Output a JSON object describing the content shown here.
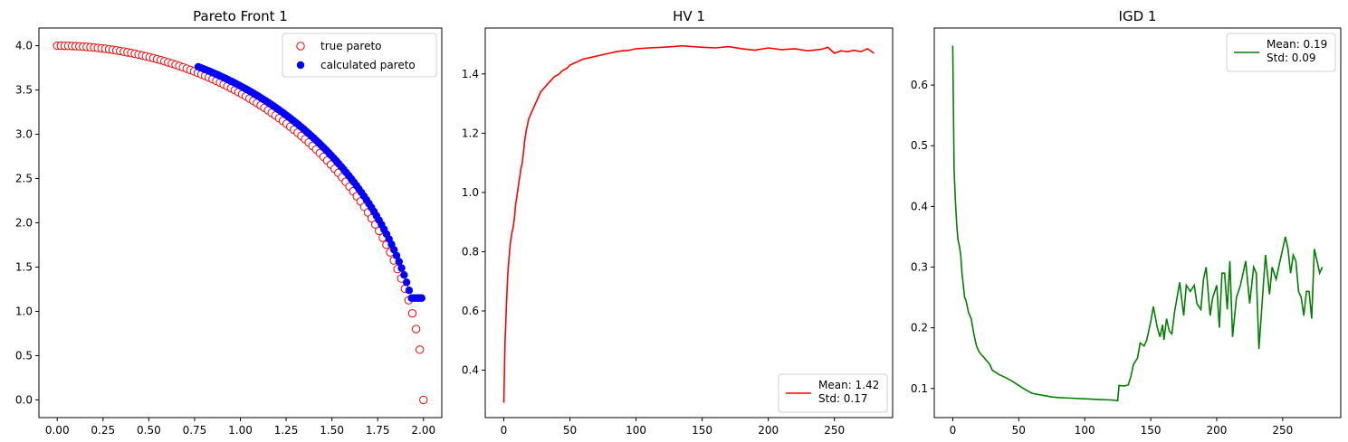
{
  "chart_data": [
    {
      "type": "scatter",
      "title": "Pareto Front 1",
      "xlim": [
        -0.1,
        2.1
      ],
      "ylim": [
        -0.2,
        4.2
      ],
      "xticks": [
        "0.00",
        "0.25",
        "0.50",
        "0.75",
        "1.00",
        "1.25",
        "1.50",
        "1.75",
        "2.00"
      ],
      "yticks": [
        "0.0",
        "0.5",
        "1.0",
        "1.5",
        "2.0",
        "2.5",
        "3.0",
        "3.5",
        "4.0"
      ],
      "legend_position": "upper right",
      "grid": false,
      "series": [
        {
          "name": "true pareto",
          "marker": "open-circle",
          "color": "#ff0000",
          "curve": "quarter-ellipse y = 4*sqrt(1-(x/2)^2)",
          "x_range": [
            0,
            2
          ],
          "points": 100
        },
        {
          "name": "calculated pareto",
          "marker": "filled-circle",
          "color": "#0000ff",
          "curve": "offset above true front",
          "x_range": [
            0.77,
            1.99
          ],
          "points": 90
        }
      ]
    },
    {
      "type": "line",
      "title": "HV 1",
      "xlim": [
        -14,
        294
      ],
      "ylim": [
        0.24,
        1.555
      ],
      "xticks": [
        "0",
        "50",
        "100",
        "150",
        "200",
        "250"
      ],
      "yticks": [
        "0.4",
        "0.6",
        "0.8",
        "1.0",
        "1.2",
        "1.4"
      ],
      "legend_position": "lower right",
      "grid": false,
      "series": [
        {
          "name": "Mean: 1.42\nStd: 0.17",
          "name_lines": [
            "Mean: 1.42",
            "Std: 0.17"
          ],
          "color": "#ff0000",
          "x": [
            0,
            1,
            2,
            3,
            4,
            5,
            6,
            7,
            8,
            9,
            10,
            11,
            12,
            13,
            14,
            15,
            16,
            17,
            18,
            19,
            20,
            22,
            24,
            26,
            28,
            30,
            32,
            34,
            36,
            38,
            40,
            42,
            44,
            46,
            48,
            50,
            55,
            60,
            65,
            70,
            75,
            80,
            85,
            90,
            95,
            100,
            110,
            120,
            130,
            135,
            140,
            150,
            160,
            170,
            180,
            190,
            200,
            210,
            220,
            230,
            240,
            245,
            250,
            255,
            260,
            265,
            270,
            275,
            280
          ],
          "y": [
            0.29,
            0.5,
            0.62,
            0.72,
            0.78,
            0.83,
            0.86,
            0.88,
            0.91,
            0.96,
            0.99,
            1.02,
            1.05,
            1.08,
            1.1,
            1.14,
            1.18,
            1.21,
            1.23,
            1.25,
            1.26,
            1.28,
            1.3,
            1.32,
            1.34,
            1.35,
            1.36,
            1.37,
            1.38,
            1.39,
            1.395,
            1.4,
            1.41,
            1.415,
            1.42,
            1.43,
            1.44,
            1.45,
            1.455,
            1.46,
            1.465,
            1.47,
            1.475,
            1.478,
            1.48,
            1.485,
            1.488,
            1.49,
            1.493,
            1.495,
            1.493,
            1.49,
            1.488,
            1.492,
            1.485,
            1.48,
            1.488,
            1.482,
            1.485,
            1.478,
            1.483,
            1.49,
            1.47,
            1.478,
            1.475,
            1.48,
            1.475,
            1.485,
            1.47
          ]
        }
      ]
    },
    {
      "type": "line",
      "title": "IGD 1",
      "xlim": [
        -14,
        294
      ],
      "ylim": [
        0.052,
        0.694
      ],
      "xticks": [
        "0",
        "50",
        "100",
        "150",
        "200",
        "250"
      ],
      "yticks": [
        "0.1",
        "0.2",
        "0.3",
        "0.4",
        "0.5",
        "0.6"
      ],
      "legend_position": "upper right",
      "grid": false,
      "series": [
        {
          "name": "Mean: 0.19\nStd: 0.09",
          "name_lines": [
            "Mean: 0.19",
            "Std: 0.09"
          ],
          "color": "#008000",
          "x": [
            0,
            1,
            2,
            3,
            4,
            5,
            6,
            7,
            8,
            9,
            10,
            12,
            14,
            16,
            18,
            20,
            22,
            24,
            26,
            28,
            30,
            35,
            40,
            45,
            50,
            55,
            60,
            65,
            70,
            75,
            80,
            90,
            100,
            110,
            120,
            125,
            126,
            130,
            133,
            135,
            137,
            140,
            142,
            145,
            147,
            150,
            152,
            155,
            157,
            159,
            160,
            162,
            164,
            166,
            168,
            170,
            172,
            175,
            177,
            180,
            183,
            185,
            188,
            190,
            192,
            195,
            197,
            200,
            202,
            204,
            206,
            208,
            210,
            212,
            215,
            218,
            220,
            222,
            225,
            228,
            230,
            232,
            235,
            237,
            240,
            242,
            245,
            248,
            250,
            252,
            254,
            256,
            258,
            260,
            262,
            264,
            266,
            268,
            270,
            272,
            274,
            276,
            278,
            280
          ],
          "y": [
            0.665,
            0.46,
            0.41,
            0.37,
            0.345,
            0.335,
            0.32,
            0.29,
            0.27,
            0.25,
            0.245,
            0.225,
            0.215,
            0.19,
            0.17,
            0.16,
            0.155,
            0.15,
            0.145,
            0.14,
            0.13,
            0.123,
            0.118,
            0.112,
            0.105,
            0.098,
            0.092,
            0.09,
            0.088,
            0.086,
            0.085,
            0.084,
            0.083,
            0.082,
            0.081,
            0.08,
            0.105,
            0.104,
            0.106,
            0.12,
            0.14,
            0.15,
            0.175,
            0.17,
            0.18,
            0.21,
            0.235,
            0.2,
            0.185,
            0.205,
            0.18,
            0.215,
            0.195,
            0.19,
            0.225,
            0.25,
            0.275,
            0.22,
            0.27,
            0.26,
            0.27,
            0.24,
            0.23,
            0.28,
            0.3,
            0.22,
            0.25,
            0.27,
            0.2,
            0.29,
            0.29,
            0.23,
            0.31,
            0.185,
            0.25,
            0.27,
            0.29,
            0.31,
            0.24,
            0.3,
            0.29,
            0.165,
            0.26,
            0.32,
            0.255,
            0.3,
            0.28,
            0.31,
            0.33,
            0.35,
            0.33,
            0.29,
            0.32,
            0.31,
            0.26,
            0.25,
            0.22,
            0.26,
            0.26,
            0.215,
            0.33,
            0.31,
            0.29,
            0.3
          ]
        }
      ]
    }
  ]
}
